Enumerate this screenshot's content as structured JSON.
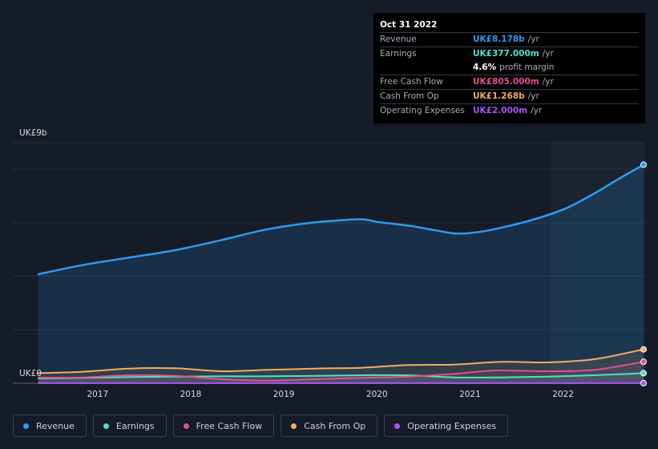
{
  "tooltip": {
    "date": "Oct 31 2022",
    "rows": [
      {
        "label": "Revenue",
        "value": "UK£8.178b",
        "unit": "/yr",
        "color": "#2d9cf0"
      },
      {
        "label": "Earnings",
        "value": "UK£377.000m",
        "unit": "/yr",
        "color": "#4fe0cf"
      },
      {
        "label": "",
        "value": "4.6%",
        "unit": "profit margin",
        "color": "#ffffff"
      },
      {
        "label": "Free Cash Flow",
        "value": "UK£805.000m",
        "unit": "/yr",
        "color": "#e0508f"
      },
      {
        "label": "Cash From Op",
        "value": "UK£1.268b",
        "unit": "/yr",
        "color": "#f0b060"
      },
      {
        "label": "Operating Expenses",
        "value": "UK£2.000m",
        "unit": "/yr",
        "color": "#a855f7"
      }
    ]
  },
  "legend": [
    {
      "label": "Revenue",
      "color": "#2d9cf0"
    },
    {
      "label": "Earnings",
      "color": "#4fe0cf"
    },
    {
      "label": "Free Cash Flow",
      "color": "#e0508f"
    },
    {
      "label": "Cash From Op",
      "color": "#f0b060"
    },
    {
      "label": "Operating Expenses",
      "color": "#a855f7"
    }
  ],
  "chart_data": {
    "type": "area",
    "ylabel_top": "UK£9b",
    "ylabel_bottom": "UK£0",
    "ylim": [
      0,
      9
    ],
    "xlim": [
      2016.3,
      2022.83
    ],
    "forecast_start": 2021.83,
    "x_ticks": [
      {
        "label": "2017",
        "x": 2017.0
      },
      {
        "label": "2018",
        "x": 2018.0
      },
      {
        "label": "2019",
        "x": 2019.0
      },
      {
        "label": "2020",
        "x": 2020.0
      },
      {
        "label": "2021",
        "x": 2021.0
      },
      {
        "label": "2022",
        "x": 2022.0
      }
    ],
    "series": [
      {
        "name": "Revenue",
        "color": "#2d9cf0",
        "x": [
          2016.33,
          2016.8,
          2017.3,
          2017.8,
          2018.3,
          2018.8,
          2019.3,
          2019.67,
          2019.83,
          2020.0,
          2020.3,
          2020.6,
          2020.83,
          2021.1,
          2021.4,
          2021.7,
          2022.0,
          2022.3,
          2022.55,
          2022.83
        ],
        "y": [
          4.08,
          4.42,
          4.7,
          4.98,
          5.36,
          5.77,
          6.02,
          6.12,
          6.13,
          6.02,
          5.9,
          5.72,
          5.6,
          5.68,
          5.9,
          6.18,
          6.55,
          7.1,
          7.62,
          8.178
        ]
      },
      {
        "name": "Earnings",
        "color": "#4fe0cf",
        "x": [
          2016.33,
          2016.8,
          2017.3,
          2017.8,
          2018.3,
          2018.8,
          2019.3,
          2019.8,
          2020.3,
          2020.8,
          2021.3,
          2021.8,
          2022.3,
          2022.83
        ],
        "y": [
          0.18,
          0.2,
          0.23,
          0.25,
          0.26,
          0.26,
          0.28,
          0.3,
          0.3,
          0.22,
          0.22,
          0.25,
          0.3,
          0.377
        ]
      },
      {
        "name": "Free Cash Flow",
        "color": "#e0508f",
        "x": [
          2016.33,
          2016.8,
          2017.3,
          2017.8,
          2018.3,
          2018.8,
          2019.3,
          2019.8,
          2020.3,
          2020.8,
          2021.1,
          2021.3,
          2021.8,
          2022.3,
          2022.83
        ],
        "y": [
          0.21,
          0.22,
          0.3,
          0.28,
          0.15,
          0.1,
          0.15,
          0.2,
          0.25,
          0.35,
          0.45,
          0.48,
          0.45,
          0.5,
          0.805
        ]
      },
      {
        "name": "Cash From Op",
        "color": "#f0b060",
        "x": [
          2016.33,
          2016.8,
          2017.3,
          2017.8,
          2018.3,
          2018.8,
          2019.3,
          2019.8,
          2020.3,
          2020.8,
          2021.3,
          2021.8,
          2022.3,
          2022.83
        ],
        "y": [
          0.38,
          0.43,
          0.55,
          0.56,
          0.45,
          0.5,
          0.55,
          0.58,
          0.68,
          0.7,
          0.8,
          0.78,
          0.9,
          1.268
        ]
      },
      {
        "name": "Operating Expenses",
        "color": "#a855f7",
        "x": [
          2016.33,
          2017.8,
          2019.3,
          2020.8,
          2022.83
        ],
        "y": [
          0.002,
          0.002,
          0.002,
          0.002,
          0.002
        ]
      }
    ]
  }
}
